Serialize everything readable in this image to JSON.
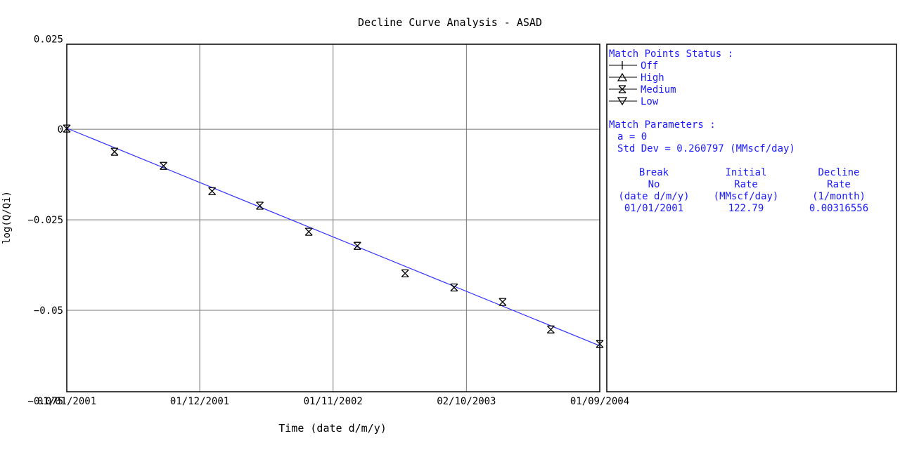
{
  "chart_data": {
    "type": "scatter",
    "title": "Decline Curve Analysis - ASAD",
    "xlabel": "Time (date d/m/y)",
    "ylabel": "log(Q/Qi)",
    "x_ticks": [
      "01/01/2001",
      "01/12/2001",
      "01/11/2002",
      "02/10/2003",
      "01/09/2004"
    ],
    "xlim": [
      "2001-01-01",
      "2004-09-01"
    ],
    "y_ticks": [
      "0.025",
      "0",
      "−0.025",
      "−0.05",
      "−0.075"
    ],
    "ylim": [
      -0.0725,
      0.0235
    ],
    "grid": true,
    "series": [
      {
        "marker": "medium-match-point",
        "points": [
          {
            "x": "2001-01-01",
            "y": 0.0002
          },
          {
            "x": "2001-05-01",
            "y": -0.0062
          },
          {
            "x": "2001-09-01",
            "y": -0.0101
          },
          {
            "x": "2002-01-01",
            "y": -0.0171
          },
          {
            "x": "2002-05-01",
            "y": -0.0211
          },
          {
            "x": "2002-09-01",
            "y": -0.0283
          },
          {
            "x": "2003-01-01",
            "y": -0.0322
          },
          {
            "x": "2003-05-01",
            "y": -0.0398
          },
          {
            "x": "2003-09-01",
            "y": -0.0437
          },
          {
            "x": "2004-01-01",
            "y": -0.0477
          },
          {
            "x": "2004-05-01",
            "y": -0.0553
          },
          {
            "x": "2004-09-01",
            "y": -0.0593
          }
        ]
      },
      {
        "type": "line",
        "color": "#3333ff",
        "points": [
          {
            "x": "2001-01-01",
            "y": 0.0003
          },
          {
            "x": "2004-09-01",
            "y": -0.0598
          }
        ]
      }
    ]
  },
  "legend_panel": {
    "status_heading": "Match Points Status :",
    "status_items": [
      {
        "label": "Off",
        "icon": "off-marker"
      },
      {
        "label": "High",
        "icon": "high-marker"
      },
      {
        "label": "Medium",
        "icon": "medium-marker"
      },
      {
        "label": "Low",
        "icon": "low-marker"
      }
    ],
    "params_heading": "Match Parameters :",
    "a_line": "a = 0",
    "std_line": "Std Dev = 0.260797 (MMscf/day)",
    "columns": [
      {
        "lines": [
          "Break",
          "No",
          "(date d/m/y)"
        ],
        "value": "01/01/2001"
      },
      {
        "lines": [
          "Initial",
          "Rate",
          "(MMscf/day)"
        ],
        "value": "122.79"
      },
      {
        "lines": [
          "Decline",
          "Rate",
          "(1/month)"
        ],
        "value": "0.00316556"
      }
    ]
  },
  "colors": {
    "text_blue": "#1a1aff",
    "fit_line": "#3333ff",
    "grid": "#777777",
    "axes": "#000000"
  }
}
